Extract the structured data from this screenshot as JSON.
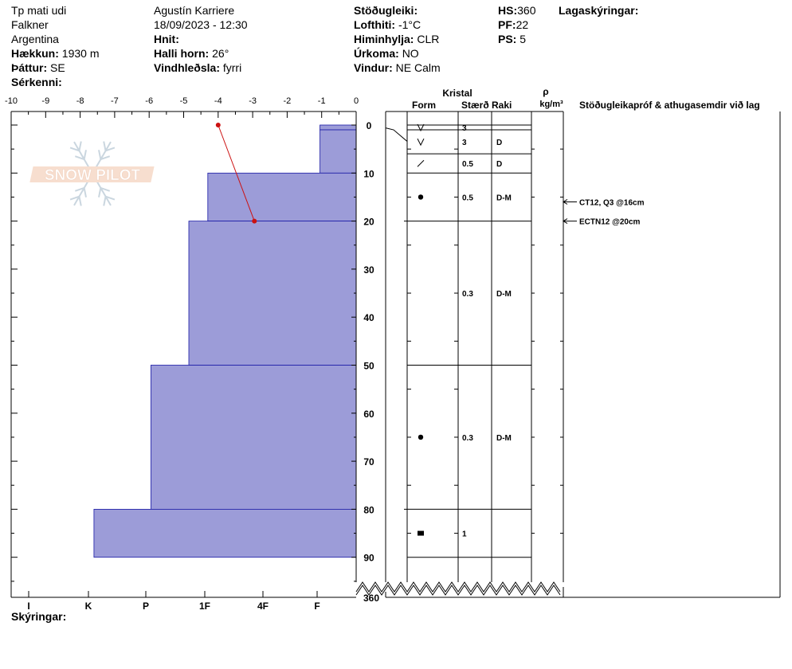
{
  "header": {
    "col1": {
      "title": "Tp mati udi",
      "location": "Falkner",
      "country": "Argentina",
      "elevation_label": "Hækkun:",
      "elevation": "1930 m",
      "aspect_label": "Þáttur:",
      "aspect": "SE",
      "remarks_label": "Sérkenni:"
    },
    "col2": {
      "observer": "Agustín Karriere",
      "datetime": "18/09/2023 - 12:30",
      "coords_label": "Hnit:",
      "slope_label": "Halli horn:",
      "slope": "26°",
      "wind_loading_label": "Vindhleðsla:",
      "wind_loading": "fyrri"
    },
    "col3": {
      "stability_label": "Stöðugleiki:",
      "airtemp_label": "Lofthiti:",
      "airtemp": "-1°C",
      "sky_label": "Himinhylja:",
      "sky": "CLR",
      "precip_label": "Úrkoma:",
      "precip": "NO",
      "wind_label": "Vindur:",
      "wind": "NE Calm"
    },
    "col4": {
      "hs_label": "HS:",
      "hs": "360",
      "pf_label": "PF:",
      "pf": "22",
      "ps_label": "PS:",
      "ps": "5"
    },
    "layers_label": "Lagaskýringar:"
  },
  "logo_text": "SNOW PILOT",
  "table": {
    "kristal": "Kristal",
    "form": "Form",
    "staerd": "Stærð",
    "raki": "Raki",
    "rho": "ρ",
    "density_unit": "kg/m³",
    "tests_header": "Stöðugleikapróf & athugasemdir við lag",
    "bottom_depth_label": "360"
  },
  "legend_label": "Skýringar:",
  "colors": {
    "hardness_fill": "#9c9cd8",
    "hardness_stroke": "#1a1aa6",
    "temp_line": "#cc1111"
  },
  "chart_data": {
    "type": "snow_profile",
    "temperature_axis": {
      "ticks": [
        "-10",
        "-9",
        "-8",
        "-7",
        "-6",
        "-5",
        "-4",
        "-3",
        "-2",
        "-1",
        "0"
      ],
      "range": [
        -10,
        0
      ]
    },
    "depth_axis": {
      "ticks": [
        "0",
        "10",
        "20",
        "30",
        "40",
        "50",
        "60",
        "70",
        "80",
        "90"
      ],
      "range": [
        0,
        95
      ]
    },
    "hardness_scale": [
      "I",
      "K",
      "P",
      "1F",
      "4F",
      "F"
    ],
    "hardness_range": [
      -10,
      0
    ],
    "layers": [
      {
        "top": 0,
        "bottom": 1,
        "hardness_value": -1.05,
        "form": "v",
        "size": "3",
        "moisture": ""
      },
      {
        "top": 1,
        "bottom": 10,
        "hardness_value": -1.05,
        "form": "v",
        "size": "3",
        "moisture": "D"
      },
      {
        "top": 10,
        "bottom": 20,
        "hardness_value": -4.3,
        "form": "/",
        "size": "0.5",
        "moisture": "D"
      },
      {
        "top": 20,
        "bottom": 50,
        "hardness_value": -4.85,
        "form": "dot",
        "size": "0.5",
        "moisture": "D-M"
      },
      {
        "top": 50,
        "bottom": 80,
        "hardness_value": -5.95,
        "form": "",
        "size": "0.3",
        "moisture": "D-M"
      },
      {
        "top": 80,
        "bottom": 90,
        "hardness_value": -7.6,
        "form": "dot",
        "size": "0.3",
        "moisture": "D-M"
      }
    ],
    "table_rows": [
      {
        "top": 0,
        "bottom": 1,
        "form": "v",
        "size": "3",
        "moisture": ""
      },
      {
        "top": 1,
        "bottom": 6,
        "form": "v",
        "size": "3",
        "moisture": "D"
      },
      {
        "top": 6,
        "bottom": 10,
        "form": "/",
        "size": "0.5",
        "moisture": "D"
      },
      {
        "top": 10,
        "bottom": 20,
        "form": "dot",
        "size": "0.5",
        "moisture": "D-M"
      },
      {
        "top": 20,
        "bottom": 50,
        "form": "",
        "size": "0.3",
        "moisture": "D-M"
      },
      {
        "top": 50,
        "bottom": 80,
        "form": "dot",
        "size": "0.3",
        "moisture": "D-M"
      },
      {
        "top": 80,
        "bottom": 90,
        "form": "square",
        "size": "1",
        "moisture": ""
      }
    ],
    "temperature_profile": [
      {
        "depth": 0,
        "temp": -4
      },
      {
        "depth": 20,
        "temp": -2.95
      }
    ],
    "stability_tests": [
      {
        "depth": 16,
        "text": "CT12, Q3 @16cm"
      },
      {
        "depth": 20,
        "text": "ECTN12 @20cm"
      }
    ]
  }
}
